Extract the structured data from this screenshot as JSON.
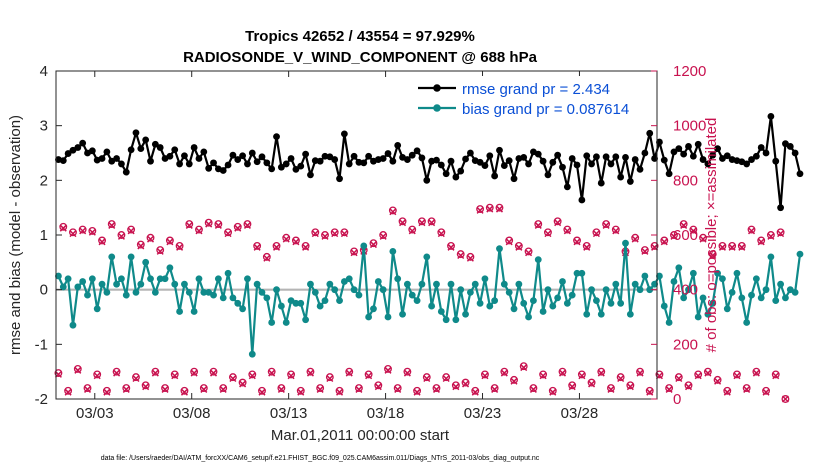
{
  "chart_data": {
    "type": "line",
    "title_line1": "Tropics 42652 / 43554 = 97.929%",
    "title_line2": "RADIOSONDE_V_WIND_COMPONENT @ 688 hPa",
    "xlabel": "Mar.01,2011 00:00:00 start",
    "ylabel": "rmse and bias (model - observation)",
    "ylabel_right": "# of obs: o=possible; ×=assimilated",
    "xlim": [
      1.0,
      32.0
    ],
    "ylim": [
      -2,
      4
    ],
    "ylim_right": [
      0,
      1200
    ],
    "x_ticks": [
      {
        "value": 3,
        "label": "03/03"
      },
      {
        "value": 8,
        "label": "03/08"
      },
      {
        "value": 13,
        "label": "03/13"
      },
      {
        "value": 18,
        "label": "03/18"
      },
      {
        "value": 23,
        "label": "03/23"
      },
      {
        "value": 28,
        "label": "03/28"
      }
    ],
    "y_ticks": [
      {
        "value": -2,
        "label": "-2"
      },
      {
        "value": -1,
        "label": "-1"
      },
      {
        "value": 0,
        "label": "0"
      },
      {
        "value": 1,
        "label": "1"
      },
      {
        "value": 2,
        "label": "2"
      },
      {
        "value": 3,
        "label": "3"
      },
      {
        "value": 4,
        "label": "4"
      }
    ],
    "y_ticks_right": [
      {
        "value": 0,
        "label": "0"
      },
      {
        "value": 200,
        "label": "200"
      },
      {
        "value": 400,
        "label": "400"
      },
      {
        "value": 600,
        "label": "600"
      },
      {
        "value": 800,
        "label": "800"
      },
      {
        "value": 1000,
        "label": "1000"
      },
      {
        "value": 1200,
        "label": "1200"
      }
    ],
    "series": [
      {
        "name": "rmse",
        "legend": "rmse grand pr = 2.434",
        "color": "#000000",
        "x_start": 1.125,
        "x_step": 0.25,
        "values": [
          2.38,
          2.36,
          2.49,
          2.55,
          2.6,
          2.68,
          2.5,
          2.54,
          2.37,
          2.4,
          2.52,
          2.35,
          2.4,
          2.3,
          2.15,
          2.56,
          2.87,
          2.58,
          2.74,
          2.35,
          2.66,
          2.6,
          2.4,
          2.44,
          2.56,
          2.3,
          2.45,
          2.3,
          2.6,
          2.4,
          2.52,
          2.22,
          2.32,
          2.21,
          2.18,
          2.28,
          2.46,
          2.38,
          2.45,
          2.3,
          2.5,
          2.34,
          2.43,
          2.32,
          2.21,
          2.8,
          2.24,
          2.3,
          2.4,
          2.2,
          2.26,
          2.48,
          2.1,
          2.36,
          2.35,
          2.44,
          2.43,
          2.38,
          2.03,
          2.85,
          2.3,
          2.44,
          2.33,
          2.32,
          2.44,
          2.35,
          2.38,
          2.4,
          2.49,
          2.35,
          2.64,
          2.42,
          2.38,
          2.46,
          2.54,
          2.41,
          2.0,
          2.35,
          2.37,
          2.28,
          2.12,
          2.35,
          2.06,
          2.17,
          2.39,
          2.5,
          2.36,
          2.33,
          2.27,
          2.45,
          2.08,
          2.55,
          2.27,
          2.36,
          2.03,
          2.4,
          2.42,
          2.3,
          2.52,
          2.48,
          2.35,
          2.1,
          2.33,
          2.46,
          2.24,
          1.88,
          2.4,
          2.28,
          1.64,
          2.45,
          2.3,
          2.43,
          1.95,
          2.43,
          2.3,
          2.43,
          2.06,
          2.42,
          1.98,
          2.38,
          2.2,
          2.5,
          2.86,
          2.4,
          2.7,
          2.37,
          2.12,
          2.52,
          2.58,
          2.48,
          2.62,
          2.44,
          2.66,
          2.38,
          2.3,
          2.46,
          2.58,
          2.4,
          2.45,
          2.38,
          2.36,
          2.34,
          2.3,
          2.38,
          2.44,
          2.6,
          2.5,
          3.17,
          2.35,
          1.5,
          2.67,
          2.62,
          2.5,
          2.12
        ]
      },
      {
        "name": "bias",
        "legend": "bias grand pr = 0.087614",
        "color": "#0f8a8a",
        "x_start": 1.125,
        "x_step": 0.25,
        "values": [
          0.25,
          0.05,
          0.2,
          -0.65,
          0.05,
          0.15,
          -0.1,
          0.2,
          -0.35,
          0.1,
          -0.05,
          0.6,
          0.1,
          0.2,
          -0.1,
          0.6,
          -0.05,
          0.1,
          0.5,
          0.2,
          -0.05,
          0.2,
          0.2,
          0.4,
          0.1,
          -0.4,
          0.1,
          -0.05,
          -0.4,
          0.2,
          -0.05,
          -0.05,
          -0.1,
          0.2,
          -0.15,
          0.3,
          -0.15,
          -0.25,
          -0.35,
          0.2,
          -1.18,
          0.1,
          -0.05,
          -0.15,
          -0.6,
          0.0,
          -0.3,
          -0.6,
          -0.2,
          -0.25,
          -0.25,
          -0.55,
          0.1,
          -0.05,
          -0.3,
          -0.2,
          0.1,
          0.0,
          -0.2,
          0.15,
          0.2,
          0.0,
          -0.1,
          0.8,
          -0.5,
          -0.35,
          0.15,
          0.0,
          -0.5,
          0.7,
          0.2,
          -0.45,
          0.1,
          -0.1,
          -0.2,
          0.1,
          0.6,
          -0.3,
          0.1,
          -0.4,
          -0.55,
          0.1,
          -0.55,
          0.0,
          -0.45,
          -0.05,
          0.1,
          -0.25,
          0.2,
          -0.3,
          -0.2,
          0.75,
          0.1,
          -0.05,
          -0.35,
          0.1,
          -0.25,
          -0.5,
          -0.2,
          0.55,
          -0.4,
          0.0,
          -0.3,
          -0.15,
          0.15,
          -0.25,
          -0.1,
          0.3,
          0.3,
          -0.45,
          0.0,
          -0.2,
          -0.45,
          0.0,
          -0.25,
          0.1,
          -0.25,
          0.85,
          -0.45,
          0.1,
          0.0,
          0.25,
          0.0,
          0.1,
          0.25,
          -0.3,
          -0.6,
          0.15,
          0.4,
          -0.15,
          0.0,
          0.3,
          -0.5,
          -0.15,
          -0.45,
          -0.25,
          0.3,
          0.2,
          -0.35,
          -0.05,
          0.3,
          -0.15,
          -0.6,
          -0.1,
          0.2,
          -0.15,
          0.0,
          0.6,
          -0.2,
          0.1,
          -0.15,
          0.0,
          -0.05,
          0.65
        ]
      }
    ],
    "obs_possible": {
      "marker": "o",
      "color": "#c8124f",
      "x_start": 1.125,
      "x_step": 0.25,
      "values": [
        95,
        630,
        30,
        610,
        110,
        620,
        40,
        615,
        90,
        580,
        30,
        640,
        100,
        600,
        40,
        620,
        80,
        565,
        50,
        590,
        100,
        545,
        40,
        580,
        90,
        560,
        30,
        640,
        100,
        620,
        40,
        645,
        100,
        640,
        40,
        610,
        80,
        630,
        60,
        640,
        90,
        560,
        30,
        520,
        100,
        560,
        40,
        590,
        90,
        580,
        30,
        560,
        100,
        610,
        40,
        600,
        80,
        610,
        30,
        610,
        100,
        540,
        40,
        545,
        90,
        570,
        50,
        600,
        110,
        690,
        40,
        650,
        100,
        620,
        30,
        650,
        80,
        650,
        40,
        610,
        80,
        560,
        50,
        530,
        60,
        520,
        30,
        695,
        90,
        700,
        40,
        700,
        100,
        580,
        70,
        560,
        120,
        540,
        40,
        640,
        90,
        610,
        30,
        650,
        100,
        620,
        50,
        580,
        90,
        560,
        60,
        610,
        100,
        640,
        40,
        620,
        80,
        540,
        50,
        590,
        100,
        545,
        30,
        560,
        90,
        580,
        40,
        600,
        80,
        640,
        50,
        620,
        90,
        590,
        100,
        530,
        70,
        560,
        30,
        560,
        90,
        560,
        40,
        620,
        100,
        580,
        30,
        600,
        90,
        610,
        0
      ]
    },
    "obs_assimilated": {
      "marker": "x",
      "color": "#c8124f",
      "x_start": 1.125,
      "x_step": 0.25,
      "values": [
        90,
        625,
        25,
        605,
        105,
        615,
        35,
        610,
        85,
        575,
        25,
        635,
        95,
        595,
        35,
        615,
        75,
        560,
        45,
        585,
        95,
        540,
        35,
        575,
        85,
        555,
        25,
        635,
        95,
        615,
        35,
        640,
        95,
        635,
        35,
        605,
        75,
        625,
        55,
        635,
        85,
        555,
        25,
        515,
        95,
        555,
        35,
        585,
        85,
        575,
        25,
        555,
        95,
        605,
        35,
        595,
        75,
        605,
        25,
        605,
        95,
        535,
        35,
        540,
        85,
        565,
        45,
        595,
        105,
        685,
        35,
        645,
        95,
        615,
        25,
        645,
        75,
        645,
        35,
        605,
        75,
        555,
        45,
        525,
        55,
        515,
        25,
        690,
        85,
        695,
        35,
        695,
        95,
        575,
        65,
        555,
        115,
        535,
        35,
        635,
        85,
        605,
        25,
        645,
        95,
        615,
        45,
        575,
        85,
        555,
        55,
        605,
        95,
        635,
        35,
        615,
        75,
        535,
        45,
        585,
        95,
        540,
        25,
        555,
        85,
        575,
        35,
        595,
        75,
        635,
        45,
        615,
        85,
        585,
        95,
        525,
        65,
        555,
        25,
        555,
        85,
        555,
        35,
        615,
        95,
        575,
        25,
        595,
        85,
        605,
        0
      ]
    },
    "zero_line": 0
  },
  "footer": "data file: /Users/raeder/DAI/ATM_forcXX/CAM6_setup/f.e21.FHIST_BGC.f09_025.CAM6assim.011/Diags_NTrS_2011-03/obs_diag_output.nc"
}
